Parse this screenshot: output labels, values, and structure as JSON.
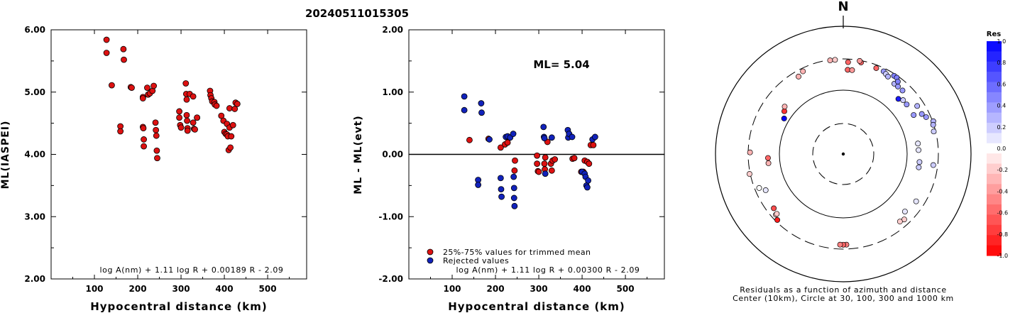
{
  "title": "20240511015305",
  "colors": {
    "trimmed": "#dd1111",
    "rejected": "#1122bb",
    "axis": "#000000"
  },
  "chart_data": [
    {
      "type": "scatter",
      "xlabel": "Hypocentral distance (km)",
      "ylabel": "ML(IASPEI)",
      "xlim": [
        0,
        590
      ],
      "ylim": [
        2.0,
        6.0
      ],
      "xticks": [
        "100",
        "200",
        "300",
        "400",
        "500"
      ],
      "yticks": [
        "2.00",
        "3.00",
        "4.00",
        "5.00",
        "6.00"
      ],
      "formula": "log A(nm) + 1.11 log R + 0.00189 R - 2.09",
      "points": [
        [
          128,
          5.84
        ],
        [
          128,
          5.63
        ],
        [
          140,
          5.11
        ],
        [
          160,
          4.45
        ],
        [
          160,
          4.37
        ],
        [
          167,
          5.69
        ],
        [
          168,
          5.52
        ],
        [
          184,
          5.08
        ],
        [
          186,
          5.07
        ],
        [
          212,
          4.92
        ],
        [
          212,
          4.9
        ],
        [
          212,
          4.44
        ],
        [
          213,
          4.42
        ],
        [
          214,
          4.24
        ],
        [
          214,
          4.13
        ],
        [
          222,
          5.07
        ],
        [
          224,
          4.96
        ],
        [
          228,
          4.98
        ],
        [
          234,
          5.02
        ],
        [
          237,
          5.1
        ],
        [
          241,
          4.51
        ],
        [
          242,
          4.39
        ],
        [
          243,
          4.3
        ],
        [
          244,
          4.06
        ],
        [
          245,
          3.94
        ],
        [
          296,
          4.69
        ],
        [
          296,
          4.59
        ],
        [
          298,
          4.47
        ],
        [
          300,
          4.43
        ],
        [
          311,
          5.14
        ],
        [
          312,
          4.97
        ],
        [
          313,
          4.88
        ],
        [
          313,
          4.63
        ],
        [
          314,
          4.54
        ],
        [
          315,
          4.42
        ],
        [
          315,
          4.38
        ],
        [
          320,
          4.97
        ],
        [
          328,
          4.93
        ],
        [
          328,
          4.51
        ],
        [
          330,
          4.41
        ],
        [
          332,
          4.4
        ],
        [
          337,
          4.59
        ],
        [
          337,
          4.59
        ],
        [
          367,
          5.02
        ],
        [
          368,
          4.95
        ],
        [
          370,
          4.9
        ],
        [
          372,
          4.85
        ],
        [
          377,
          4.84
        ],
        [
          378,
          4.8
        ],
        [
          382,
          4.78
        ],
        [
          393,
          4.62
        ],
        [
          398,
          4.54
        ],
        [
          400,
          4.36
        ],
        [
          403,
          4.33
        ],
        [
          406,
          4.49
        ],
        [
          406,
          4.32
        ],
        [
          408,
          4.29
        ],
        [
          410,
          4.07
        ],
        [
          412,
          4.74
        ],
        [
          412,
          4.43
        ],
        [
          414,
          4.11
        ],
        [
          416,
          4.29
        ],
        [
          420,
          4.47
        ],
        [
          424,
          4.73
        ],
        [
          426,
          4.83
        ],
        [
          430,
          4.81
        ]
      ]
    },
    {
      "type": "scatter",
      "xlabel": "Hypocentral distance (km)",
      "ylabel": "ML - ML(evt)",
      "xlim": [
        0,
        590
      ],
      "ylim": [
        -2.0,
        2.0
      ],
      "xticks": [
        "100",
        "200",
        "300",
        "400",
        "500"
      ],
      "yticks": [
        "-2.00",
        "-1.00",
        "0.00",
        "1.00",
        "2.00"
      ],
      "annotation": "ML= 5.04",
      "formula": "log A(nm) + 1.11 log R + 0.00300 R - 2.09",
      "series": [
        {
          "name": "25%-75% values for trimmed mean",
          "points": [
            [
              140,
              0.23
            ],
            [
              184,
              0.25
            ],
            [
              212,
              0.11
            ],
            [
              222,
              0.16
            ],
            [
              228,
              0.19
            ],
            [
              244,
              -0.26
            ],
            [
              245,
              -0.1
            ],
            [
              296,
              -0.02
            ],
            [
              296,
              -0.15
            ],
            [
              298,
              -0.27
            ],
            [
              300,
              -0.28
            ],
            [
              313,
              -0.15
            ],
            [
              314,
              -0.24
            ],
            [
              315,
              -0.05
            ],
            [
              320,
              0.2
            ],
            [
              328,
              -0.15
            ],
            [
              330,
              -0.26
            ],
            [
              332,
              -0.1
            ],
            [
              337,
              -0.08
            ],
            [
              378,
              -0.07
            ],
            [
              382,
              -0.06
            ],
            [
              398,
              -0.28
            ],
            [
              403,
              -0.28
            ],
            [
              406,
              -0.1
            ],
            [
              412,
              -0.12
            ],
            [
              416,
              -0.15
            ],
            [
              420,
              0.15
            ],
            [
              426,
              0.15
            ]
          ]
        },
        {
          "name": "Rejected values",
          "points": [
            [
              128,
              0.93
            ],
            [
              128,
              0.71
            ],
            [
              160,
              -0.41
            ],
            [
              160,
              -0.49
            ],
            [
              167,
              0.82
            ],
            [
              168,
              0.67
            ],
            [
              186,
              0.24
            ],
            [
              212,
              -0.38
            ],
            [
              213,
              -0.56
            ],
            [
              214,
              -0.68
            ],
            [
              224,
              0.28
            ],
            [
              228,
              0.29
            ],
            [
              234,
              0.27
            ],
            [
              241,
              0.33
            ],
            [
              242,
              -0.36
            ],
            [
              243,
              -0.54
            ],
            [
              243,
              -0.7
            ],
            [
              244,
              -0.83
            ],
            [
              311,
              0.44
            ],
            [
              312,
              0.28
            ],
            [
              313,
              0.26
            ],
            [
              315,
              -0.31
            ],
            [
              330,
              0.27
            ],
            [
              367,
              0.39
            ],
            [
              368,
              0.27
            ],
            [
              370,
              0.33
            ],
            [
              377,
              0.28
            ],
            [
              400,
              -0.28
            ],
            [
              406,
              -0.31
            ],
            [
              408,
              -0.36
            ],
            [
              410,
              -0.5
            ],
            [
              412,
              -0.53
            ],
            [
              414,
              -0.42
            ],
            [
              424,
              0.24
            ],
            [
              430,
              0.28
            ]
          ]
        }
      ]
    },
    {
      "type": "polar-scatter",
      "north_label": "N",
      "caption_line1": "Residuals as a function of azimuth and distance",
      "caption_line2": "Center (10km), Circle at 30, 100, 300 and 1000 km",
      "colorbar_title": "Res",
      "colorbar_ticks": [
        "1.0",
        "0.8",
        "0.6",
        "0.4",
        "0.2",
        "0.0",
        "-0.2",
        "-0.4",
        "-0.6",
        "-0.8",
        "-1.0"
      ],
      "points_az_r_res": [
        [
          352,
          0.74,
          -0.3
        ],
        [
          355,
          0.74,
          -0.2
        ],
        [
          3,
          0.72,
          -0.6
        ],
        [
          3,
          0.66,
          -0.6
        ],
        [
          6,
          0.66,
          -0.4
        ],
        [
          11,
          0.73,
          -0.6
        ],
        [
          10,
          0.74,
          -0.4
        ],
        [
          21,
          0.72,
          -0.6
        ],
        [
          26,
          0.72,
          0.4
        ],
        [
          28,
          0.71,
          0.2
        ],
        [
          30,
          0.7,
          0.3
        ],
        [
          36,
          0.68,
          0.3
        ],
        [
          39,
          0.68,
          0.4
        ],
        [
          43,
          0.68,
          0.4
        ],
        [
          33,
          0.73,
          0.5
        ],
        [
          35,
          0.73,
          0.5
        ],
        [
          37,
          0.71,
          0.5
        ],
        [
          45,
          0.61,
          0.9
        ],
        [
          48,
          0.63,
          0.2
        ],
        [
          52,
          0.63,
          0.4
        ],
        [
          61,
          0.63,
          0.4
        ],
        [
          57,
          0.69,
          0.3
        ],
        [
          63,
          0.69,
          0.4
        ],
        [
          66,
          0.71,
          0.4
        ],
        [
          70,
          0.75,
          0.3
        ],
        [
          72,
          0.74,
          0.3
        ],
        [
          76,
          0.73,
          0.2
        ],
        [
          82,
          0.59,
          0.1
        ],
        [
          87,
          0.59,
          0.1
        ],
        [
          96,
          0.6,
          0.2
        ],
        [
          100,
          0.6,
          0.2
        ],
        [
          97,
          0.71,
          0.2
        ],
        [
          123,
          0.68,
          0.1
        ],
        [
          133,
          0.66,
          0.1
        ],
        [
          137,
          0.7,
          -0.2
        ],
        [
          140,
          0.69,
          -0.2
        ],
        [
          178,
          0.71,
          -0.5
        ],
        [
          180,
          0.71,
          -0.6
        ],
        [
          182,
          0.71,
          -0.5
        ],
        [
          228,
          0.71,
          -0.2
        ],
        [
          228,
          0.7,
          -0.2
        ],
        [
          232,
          0.69,
          -0.7
        ],
        [
          225,
          0.73,
          -0.9
        ],
        [
          263,
          0.59,
          -0.3
        ],
        [
          267,
          0.59,
          -0.6
        ],
        [
          245,
          0.67,
          0.1
        ],
        [
          248,
          0.71,
          0.0
        ],
        [
          258,
          0.75,
          -0.2
        ],
        [
          271,
          0.73,
          -0.3
        ],
        [
          301,
          0.54,
          1.0
        ],
        [
          306,
          0.57,
          -0.8
        ],
        [
          309,
          0.59,
          -0.3
        ],
        [
          330,
          0.7,
          -0.3
        ],
        [
          334,
          0.72,
          -0.3
        ]
      ]
    }
  ]
}
